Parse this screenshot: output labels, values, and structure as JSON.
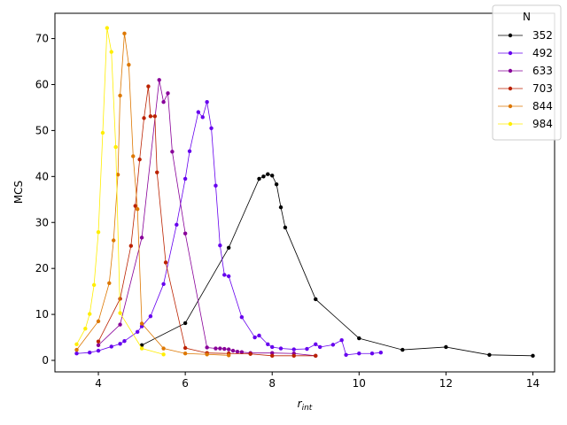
{
  "chart_data": {
    "type": "line",
    "title": "",
    "xlabel_main": "r",
    "xlabel_sub": "int",
    "ylabel": "MCS",
    "xlim": [
      3.0,
      14.5
    ],
    "ylim": [
      -2.5,
      75.5
    ],
    "xticks": [
      4,
      6,
      8,
      10,
      12,
      14
    ],
    "yticks": [
      0,
      10,
      20,
      30,
      40,
      50,
      60,
      70
    ],
    "grid": false,
    "legend": {
      "title": "N",
      "placement": "top-right"
    },
    "series": [
      {
        "name": "352",
        "color": "#000000",
        "x": [
          5.0,
          6.0,
          7.0,
          7.7,
          7.8,
          7.9,
          8.0,
          8.1,
          8.2,
          8.3,
          9.0,
          10.0,
          11.0,
          12.0,
          13.0,
          14.0
        ],
        "y": [
          3.3,
          8.1,
          24.5,
          39.5,
          40.0,
          40.5,
          40.2,
          38.3,
          33.3,
          28.9,
          13.3,
          4.8,
          2.3,
          2.9,
          1.2,
          1.0
        ]
      },
      {
        "name": "492",
        "color": "#6600ee",
        "x": [
          3.5,
          3.8,
          4.0,
          4.3,
          4.5,
          4.6,
          4.9,
          5.0,
          5.2,
          5.5,
          5.8,
          6.0,
          6.1,
          6.3,
          6.4,
          6.5,
          6.6,
          6.7,
          6.8,
          6.9,
          7.0,
          7.3,
          7.6,
          7.7,
          7.9,
          8.0,
          8.2,
          8.5,
          8.8,
          9.0,
          9.1,
          9.4,
          9.6,
          9.7,
          10.0,
          10.3,
          10.5
        ],
        "y": [
          1.5,
          1.7,
          2.1,
          3.0,
          3.6,
          4.2,
          6.2,
          7.4,
          9.6,
          16.6,
          29.5,
          39.5,
          45.5,
          54.0,
          52.9,
          56.2,
          50.5,
          38.0,
          25.0,
          18.6,
          18.3,
          9.4,
          5.0,
          5.4,
          3.5,
          2.9,
          2.6,
          2.4,
          2.5,
          3.5,
          2.9,
          3.4,
          4.4,
          1.2,
          1.5,
          1.5,
          1.7
        ]
      },
      {
        "name": "633",
        "color": "#880099",
        "x": [
          4.0,
          4.5,
          5.0,
          5.4,
          5.5,
          5.6,
          5.7,
          6.0,
          6.5,
          6.7,
          6.8,
          6.9,
          7.0,
          7.1,
          7.2,
          7.3,
          7.5,
          8.0,
          8.5,
          9.0
        ],
        "y": [
          3.3,
          7.8,
          26.7,
          61.0,
          56.2,
          58.1,
          45.4,
          27.6,
          2.8,
          2.6,
          2.6,
          2.5,
          2.4,
          2.1,
          1.9,
          1.8,
          1.6,
          1.6,
          1.5,
          1.0
        ]
      },
      {
        "name": "703",
        "color": "#bb2200",
        "x": [
          4.0,
          4.5,
          4.75,
          4.85,
          4.95,
          5.05,
          5.15,
          5.2,
          5.3,
          5.35,
          5.55,
          6.0,
          6.5,
          7.0,
          7.5,
          8.0,
          8.5,
          9.0
        ],
        "y": [
          4.1,
          13.4,
          24.9,
          33.6,
          43.7,
          52.7,
          59.6,
          53.1,
          53.1,
          40.9,
          21.3,
          2.7,
          1.6,
          1.5,
          1.4,
          1.0,
          1.0,
          1.0
        ]
      },
      {
        "name": "844",
        "color": "#dd7700",
        "x": [
          3.5,
          4.0,
          4.25,
          4.35,
          4.45,
          4.5,
          4.6,
          4.7,
          4.8,
          4.9,
          5.0,
          5.5,
          6.0,
          6.5,
          7.0
        ],
        "y": [
          2.3,
          8.5,
          16.8,
          26.1,
          40.4,
          57.6,
          71.1,
          64.3,
          44.4,
          32.9,
          8.0,
          2.6,
          1.5,
          1.3,
          1.1
        ]
      },
      {
        "name": "984",
        "color": "#ffee00",
        "x": [
          3.5,
          3.7,
          3.8,
          3.9,
          4.0,
          4.1,
          4.2,
          4.3,
          4.4,
          4.5,
          5.0,
          5.5
        ],
        "y": [
          3.5,
          6.9,
          10.1,
          16.4,
          27.9,
          49.5,
          72.3,
          67.1,
          46.4,
          10.3,
          2.6,
          1.3
        ]
      }
    ]
  }
}
